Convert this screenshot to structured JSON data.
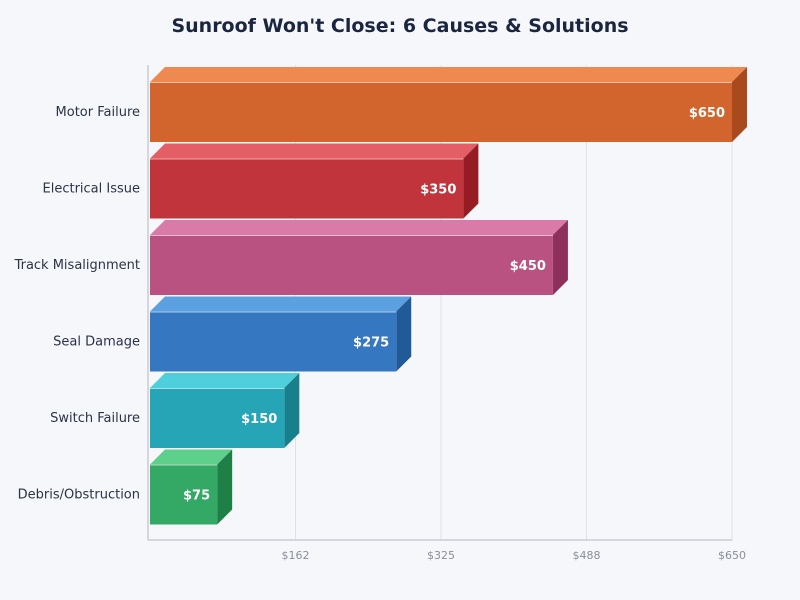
{
  "chart_data": {
    "type": "bar",
    "orientation": "horizontal",
    "style": "3d",
    "title": "Sunroof Won't Close: 6 Causes & Solutions",
    "xlabel": "",
    "ylabel": "",
    "xlim": [
      0,
      650
    ],
    "grid": "vertical",
    "x_ticks": [
      "$162",
      "$325",
      "$488",
      "$650"
    ],
    "x_tick_values": [
      162.5,
      325,
      487.5,
      650
    ],
    "categories": [
      "Motor Failure",
      "Electrical Issue",
      "Track Misalignment",
      "Seal Damage",
      "Switch Failure",
      "Debris/Obstruction"
    ],
    "values": [
      650,
      350,
      450,
      275,
      150,
      75
    ],
    "data_labels": [
      "$650",
      "$350",
      "$450",
      "$275",
      "$150",
      "$75"
    ],
    "colors": [
      {
        "front": "#d2652d",
        "top": "#ee8a50",
        "side": "#a84a1c"
      },
      {
        "front": "#c2343b",
        "top": "#e35f65",
        "side": "#951c22"
      },
      {
        "front": "#b95280",
        "top": "#d97aa8",
        "side": "#8e2f5c"
      },
      {
        "front": "#3577c0",
        "top": "#5ba0e0",
        "side": "#215a98"
      },
      {
        "front": "#26a5b6",
        "top": "#4fcfdc",
        "side": "#187f8c"
      },
      {
        "front": "#34a865",
        "top": "#5fcf8c",
        "side": "#1e8047"
      }
    ]
  }
}
